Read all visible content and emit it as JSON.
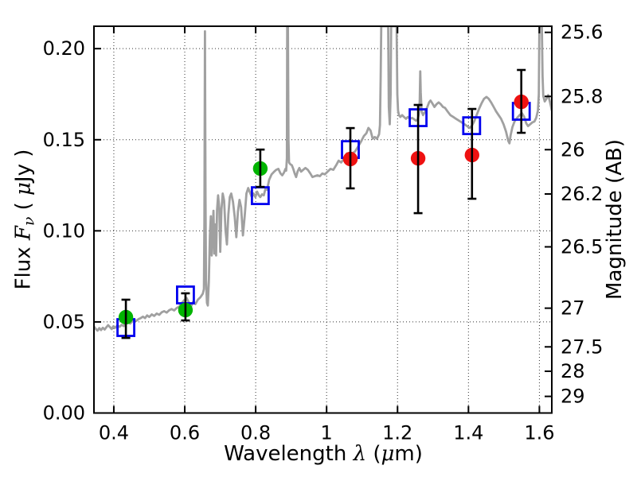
{
  "chart_data": {
    "type": "line+scatter",
    "title": "",
    "xlabel_parts": [
      {
        "t": "Wavelength  ",
        "s": "plain"
      },
      {
        "t": "λ",
        "s": "mathit"
      },
      {
        "t": " (",
        "s": "plain"
      },
      {
        "t": "μ",
        "s": "mathit"
      },
      {
        "t": "m)",
        "s": "plain"
      }
    ],
    "ylabel_left_parts": [
      {
        "t": "Flux  ",
        "s": "plain"
      },
      {
        "t": "F",
        "s": "mathit"
      },
      {
        "t": "ν",
        "s": "mathsub"
      },
      {
        "t": "  ( ",
        "s": "plain"
      },
      {
        "t": "μ",
        "s": "mathit"
      },
      {
        "t": "Jy )",
        "s": "plain"
      }
    ],
    "ylabel_right": "Magnitude (AB)",
    "xlim": [
      0.344,
      1.635
    ],
    "ylim_flux": [
      0.0,
      0.2123
    ],
    "x_ticks": [
      {
        "v": 0.4,
        "label": "0.4"
      },
      {
        "v": 0.6,
        "label": "0.6"
      },
      {
        "v": 0.8,
        "label": "0.8"
      },
      {
        "v": 1.0,
        "label": "1"
      },
      {
        "v": 1.2,
        "label": "1.2"
      },
      {
        "v": 1.4,
        "label": "1.4"
      },
      {
        "v": 1.6,
        "label": "1.6"
      }
    ],
    "y_ticks_flux": [
      {
        "v": 0.0,
        "label": "0.00"
      },
      {
        "v": 0.05,
        "label": "0.05"
      },
      {
        "v": 0.1,
        "label": "0.10"
      },
      {
        "v": 0.15,
        "label": "0.15"
      },
      {
        "v": 0.2,
        "label": "0.20"
      }
    ],
    "y_ticks_mag": [
      {
        "v": 25.6,
        "label": "25.6"
      },
      {
        "v": 25.8,
        "label": "25.8"
      },
      {
        "v": 26.0,
        "label": "26"
      },
      {
        "v": 26.2,
        "label": "26.2"
      },
      {
        "v": 26.5,
        "label": "26.5"
      },
      {
        "v": 27.0,
        "label": "27"
      },
      {
        "v": 27.5,
        "label": "27.5"
      },
      {
        "v": 28.0,
        "label": "28"
      },
      {
        "v": 29.0,
        "label": "29"
      }
    ],
    "mag_zeropoint_ab_ujy": 23.9,
    "grid": {
      "show": true,
      "style": "dotted"
    },
    "colors": {
      "spectrum": "#a0a0a0",
      "green_points": "#00b400",
      "red_points": "#ee1111",
      "blue_squares": "#0000ee",
      "error_bars": "#000000",
      "grid": "#333333",
      "frame": "#000000"
    },
    "series": [
      {
        "name": "model-spectrum",
        "kind": "line"
      },
      {
        "name": "model-photometry",
        "kind": "open-square"
      },
      {
        "name": "observed-photometry-green",
        "kind": "filled-circle-errorbar"
      },
      {
        "name": "observed-photometry-red",
        "kind": "filled-circle-errorbar"
      }
    ],
    "model_photometry_squares": [
      {
        "x": 0.434,
        "y": 0.0469
      },
      {
        "x": 0.602,
        "y": 0.0648
      },
      {
        "x": 0.813,
        "y": 0.1193
      },
      {
        "x": 1.067,
        "y": 0.1446
      },
      {
        "x": 1.258,
        "y": 0.1621
      },
      {
        "x": 1.409,
        "y": 0.1577
      },
      {
        "x": 1.549,
        "y": 0.1656
      }
    ],
    "observed_photometry": [
      {
        "x": 0.434,
        "y": 0.0526,
        "err_lo": 0.0412,
        "err_hi": 0.0622,
        "color": "green"
      },
      {
        "x": 0.602,
        "y": 0.0565,
        "err_lo": 0.0508,
        "err_hi": 0.0657,
        "color": "green"
      },
      {
        "x": 0.813,
        "y": 0.1342,
        "err_lo": 0.1241,
        "err_hi": 0.1446,
        "color": "green"
      },
      {
        "x": 1.067,
        "y": 0.1394,
        "err_lo": 0.1233,
        "err_hi": 0.1564,
        "color": "red"
      },
      {
        "x": 1.258,
        "y": 0.1398,
        "err_lo": 0.1097,
        "err_hi": 0.1691,
        "color": "red"
      },
      {
        "x": 1.41,
        "y": 0.1416,
        "err_lo": 0.1176,
        "err_hi": 0.1669,
        "color": "red"
      },
      {
        "x": 1.549,
        "y": 0.1708,
        "err_lo": 0.1538,
        "err_hi": 0.1883,
        "color": "red"
      }
    ],
    "spectrum_points": [
      [
        0.344,
        0.0475
      ],
      [
        0.349,
        0.0462
      ],
      [
        0.354,
        0.0452
      ],
      [
        0.359,
        0.0466
      ],
      [
        0.364,
        0.0455
      ],
      [
        0.369,
        0.0468
      ],
      [
        0.374,
        0.0458
      ],
      [
        0.379,
        0.0471
      ],
      [
        0.384,
        0.0482
      ],
      [
        0.389,
        0.0472
      ],
      [
        0.394,
        0.0461
      ],
      [
        0.399,
        0.0476
      ],
      [
        0.404,
        0.0468
      ],
      [
        0.41,
        0.0481
      ],
      [
        0.416,
        0.0473
      ],
      [
        0.422,
        0.0484
      ],
      [
        0.428,
        0.0477
      ],
      [
        0.434,
        0.0491
      ],
      [
        0.44,
        0.0499
      ],
      [
        0.446,
        0.0491
      ],
      [
        0.452,
        0.0503
      ],
      [
        0.458,
        0.0511
      ],
      [
        0.464,
        0.0506
      ],
      [
        0.47,
        0.0516
      ],
      [
        0.476,
        0.0521
      ],
      [
        0.482,
        0.0529
      ],
      [
        0.488,
        0.0521
      ],
      [
        0.494,
        0.0536
      ],
      [
        0.5,
        0.0527
      ],
      [
        0.507,
        0.0541
      ],
      [
        0.514,
        0.0533
      ],
      [
        0.521,
        0.0546
      ],
      [
        0.528,
        0.0539
      ],
      [
        0.535,
        0.0553
      ],
      [
        0.542,
        0.0559
      ],
      [
        0.549,
        0.0551
      ],
      [
        0.556,
        0.0564
      ],
      [
        0.563,
        0.0571
      ],
      [
        0.57,
        0.0563
      ],
      [
        0.577,
        0.0576
      ],
      [
        0.584,
        0.0583
      ],
      [
        0.591,
        0.0602
      ],
      [
        0.598,
        0.0618
      ],
      [
        0.605,
        0.0632
      ],
      [
        0.612,
        0.0605
      ],
      [
        0.618,
        0.0585
      ],
      [
        0.624,
        0.0612
      ],
      [
        0.63,
        0.0598
      ],
      [
        0.637,
        0.0622
      ],
      [
        0.644,
        0.0635
      ],
      [
        0.651,
        0.0655
      ],
      [
        0.654,
        0.068
      ],
      [
        0.6555,
        0.105
      ],
      [
        0.657,
        0.2095
      ],
      [
        0.6585,
        0.12
      ],
      [
        0.66,
        0.073
      ],
      [
        0.6625,
        0.0605
      ],
      [
        0.665,
        0.059
      ],
      [
        0.668,
        0.0725
      ],
      [
        0.671,
        0.0975
      ],
      [
        0.6735,
        0.108
      ],
      [
        0.676,
        0.0865
      ],
      [
        0.6785,
        0.0995
      ],
      [
        0.681,
        0.111
      ],
      [
        0.6835,
        0.0875
      ],
      [
        0.686,
        0.1035
      ],
      [
        0.6885,
        0.0865
      ],
      [
        0.691,
        0.1115
      ],
      [
        0.694,
        0.1195
      ],
      [
        0.6975,
        0.1125
      ],
      [
        0.7,
        0.0885
      ],
      [
        0.7035,
        0.1115
      ],
      [
        0.707,
        0.1205
      ],
      [
        0.711,
        0.1165
      ],
      [
        0.715,
        0.1005
      ],
      [
        0.719,
        0.0925
      ],
      [
        0.723,
        0.109
      ],
      [
        0.727,
        0.1185
      ],
      [
        0.731,
        0.1205
      ],
      [
        0.736,
        0.116
      ],
      [
        0.741,
        0.1075
      ],
      [
        0.7455,
        0.0965
      ],
      [
        0.75,
        0.1105
      ],
      [
        0.7545,
        0.117
      ],
      [
        0.759,
        0.113
      ],
      [
        0.764,
        0.0975
      ],
      [
        0.769,
        0.108
      ],
      [
        0.774,
        0.1205
      ],
      [
        0.779,
        0.1235
      ],
      [
        0.784,
        0.121
      ],
      [
        0.789,
        0.1185
      ],
      [
        0.794,
        0.1205
      ],
      [
        0.799,
        0.1185
      ],
      [
        0.804,
        0.1215
      ],
      [
        0.809,
        0.1195
      ],
      [
        0.813,
        0.1185
      ],
      [
        0.818,
        0.12
      ],
      [
        0.823,
        0.1195
      ],
      [
        0.828,
        0.1235
      ],
      [
        0.832,
        0.1225
      ],
      [
        0.838,
        0.128
      ],
      [
        0.845,
        0.131
      ],
      [
        0.852,
        0.1325
      ],
      [
        0.858,
        0.1335
      ],
      [
        0.864,
        0.134
      ],
      [
        0.87,
        0.1315
      ],
      [
        0.875,
        0.1305
      ],
      [
        0.88,
        0.132
      ],
      [
        0.884,
        0.134
      ],
      [
        0.886,
        0.133
      ],
      [
        0.888,
        0.14
      ],
      [
        0.889,
        0.2123
      ],
      [
        0.891,
        0.2123
      ],
      [
        0.8925,
        0.15
      ],
      [
        0.894,
        0.1375
      ],
      [
        0.898,
        0.1365
      ],
      [
        0.902,
        0.136
      ],
      [
        0.906,
        0.134
      ],
      [
        0.91,
        0.1315
      ],
      [
        0.914,
        0.1295
      ],
      [
        0.918,
        0.1325
      ],
      [
        0.923,
        0.1345
      ],
      [
        0.928,
        0.1325
      ],
      [
        0.934,
        0.1335
      ],
      [
        0.94,
        0.1345
      ],
      [
        0.947,
        0.1335
      ],
      [
        0.954,
        0.1315
      ],
      [
        0.96,
        0.1295
      ],
      [
        0.967,
        0.13
      ],
      [
        0.974,
        0.1305
      ],
      [
        0.981,
        0.13
      ],
      [
        0.988,
        0.1315
      ],
      [
        0.995,
        0.131
      ],
      [
        1.003,
        0.1325
      ],
      [
        1.011,
        0.134
      ],
      [
        1.019,
        0.1335
      ],
      [
        1.027,
        0.136
      ],
      [
        1.034,
        0.1385
      ],
      [
        1.041,
        0.1375
      ],
      [
        1.049,
        0.1395
      ],
      [
        1.057,
        0.1425
      ],
      [
        1.064,
        0.1415
      ],
      [
        1.072,
        0.1425
      ],
      [
        1.08,
        0.1435
      ],
      [
        1.088,
        0.146
      ],
      [
        1.097,
        0.149
      ],
      [
        1.105,
        0.152
      ],
      [
        1.112,
        0.1535
      ],
      [
        1.118,
        0.1565
      ],
      [
        1.124,
        0.155
      ],
      [
        1.13,
        0.1505
      ],
      [
        1.136,
        0.1515
      ],
      [
        1.142,
        0.1505
      ],
      [
        1.148,
        0.153
      ],
      [
        1.1505,
        0.158
      ],
      [
        1.1525,
        0.185
      ],
      [
        1.154,
        0.2123
      ],
      [
        1.1735,
        0.2123
      ],
      [
        1.1755,
        0.168
      ],
      [
        1.178,
        0.1585
      ],
      [
        1.1805,
        0.175
      ],
      [
        1.182,
        0.2123
      ],
      [
        1.1975,
        0.2123
      ],
      [
        1.1995,
        0.175
      ],
      [
        1.2015,
        0.166
      ],
      [
        1.204,
        0.1635
      ],
      [
        1.208,
        0.1625
      ],
      [
        1.213,
        0.1635
      ],
      [
        1.218,
        0.1625
      ],
      [
        1.224,
        0.1615
      ],
      [
        1.229,
        0.1625
      ],
      [
        1.235,
        0.1615
      ],
      [
        1.241,
        0.162
      ],
      [
        1.247,
        0.1612
      ],
      [
        1.252,
        0.1605
      ],
      [
        1.257,
        0.1612
      ],
      [
        1.26,
        0.164
      ],
      [
        1.2625,
        0.171
      ],
      [
        1.264,
        0.1875
      ],
      [
        1.2655,
        0.176
      ],
      [
        1.268,
        0.1655
      ],
      [
        1.272,
        0.1635
      ],
      [
        1.278,
        0.1655
      ],
      [
        1.284,
        0.168
      ],
      [
        1.289,
        0.1705
      ],
      [
        1.293,
        0.1715
      ],
      [
        1.298,
        0.17
      ],
      [
        1.304,
        0.168
      ],
      [
        1.31,
        0.1695
      ],
      [
        1.316,
        0.1705
      ],
      [
        1.322,
        0.1695
      ],
      [
        1.328,
        0.168
      ],
      [
        1.334,
        0.1675
      ],
      [
        1.341,
        0.1655
      ],
      [
        1.349,
        0.1635
      ],
      [
        1.357,
        0.1625
      ],
      [
        1.365,
        0.1615
      ],
      [
        1.373,
        0.1605
      ],
      [
        1.381,
        0.1595
      ],
      [
        1.389,
        0.1585
      ],
      [
        1.396,
        0.1575
      ],
      [
        1.403,
        0.1565
      ],
      [
        1.409,
        0.1575
      ],
      [
        1.416,
        0.16
      ],
      [
        1.423,
        0.1635
      ],
      [
        1.43,
        0.167
      ],
      [
        1.437,
        0.17
      ],
      [
        1.444,
        0.1725
      ],
      [
        1.451,
        0.1735
      ],
      [
        1.457,
        0.1725
      ],
      [
        1.464,
        0.1705
      ],
      [
        1.471,
        0.168
      ],
      [
        1.478,
        0.1655
      ],
      [
        1.485,
        0.1635
      ],
      [
        1.492,
        0.1615
      ],
      [
        1.499,
        0.1585
      ],
      [
        1.506,
        0.1545
      ],
      [
        1.512,
        0.1495
      ],
      [
        1.5155,
        0.148
      ],
      [
        1.519,
        0.1525
      ],
      [
        1.524,
        0.157
      ],
      [
        1.53,
        0.16
      ],
      [
        1.537,
        0.162
      ],
      [
        1.544,
        0.1635
      ],
      [
        1.551,
        0.1645
      ],
      [
        1.557,
        0.1625
      ],
      [
        1.563,
        0.159
      ],
      [
        1.568,
        0.1575
      ],
      [
        1.574,
        0.1585
      ],
      [
        1.58,
        0.1595
      ],
      [
        1.586,
        0.16
      ],
      [
        1.591,
        0.162
      ],
      [
        1.596,
        0.166
      ],
      [
        1.5985,
        0.175
      ],
      [
        1.6,
        0.2123
      ],
      [
        1.607,
        0.2123
      ],
      [
        1.609,
        0.185
      ],
      [
        1.611,
        0.174
      ],
      [
        1.615,
        0.171
      ],
      [
        1.62,
        0.1725
      ],
      [
        1.625,
        0.1745
      ],
      [
        1.629,
        0.1715
      ],
      [
        1.633,
        0.168
      ],
      [
        1.635,
        0.166
      ]
    ]
  }
}
